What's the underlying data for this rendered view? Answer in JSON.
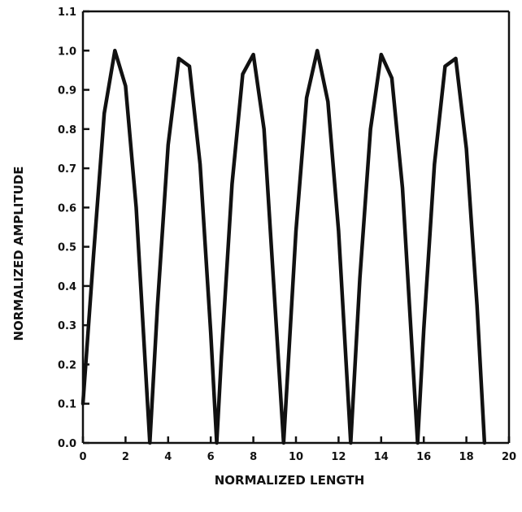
{
  "chart_data": {
    "type": "line",
    "title": "",
    "xlabel": "NORMALIZED   LENGTH",
    "ylabel": "NORMALIZED   AMPLITUDE",
    "xlim": [
      0,
      20
    ],
    "ylim": [
      0.0,
      1.1
    ],
    "grid": false,
    "x_ticks": [
      0,
      2,
      4,
      6,
      8,
      10,
      12,
      14,
      16,
      18,
      20
    ],
    "x_tick_labels": [
      "0",
      "2",
      "4",
      "6",
      "8",
      "10",
      "12",
      "14",
      "16",
      "18",
      "20"
    ],
    "y_ticks": [
      0.0,
      0.1,
      0.2,
      0.3,
      0.4,
      0.5,
      0.6,
      0.7,
      0.8,
      0.9,
      1.0,
      1.1
    ],
    "y_tick_labels": [
      "0.0",
      "0.1",
      "0.2",
      "0.3",
      "0.4",
      "0.5",
      "0.6",
      "0.7",
      "0.8",
      "0.9",
      "1.0",
      "1.1"
    ],
    "series": [
      {
        "x": [
          0.0,
          0.5,
          1.0,
          1.5,
          2.0,
          2.5,
          3.14,
          3.5,
          4.0,
          4.5,
          5.0,
          5.5,
          6.0,
          6.28,
          6.5,
          7.0,
          7.5,
          8.0,
          8.5,
          9.42,
          10.0,
          10.5,
          11.0,
          11.5,
          12.0,
          12.57,
          13.0,
          13.5,
          14.0,
          14.5,
          15.0,
          15.71,
          16.0,
          16.5,
          17.0,
          17.5,
          18.0,
          18.5,
          18.85
        ],
        "y": [
          0.1,
          0.48,
          0.84,
          1.0,
          0.91,
          0.6,
          0.0,
          0.35,
          0.76,
          0.98,
          0.96,
          0.71,
          0.28,
          0.0,
          0.22,
          0.66,
          0.94,
          0.99,
          0.8,
          0.0,
          0.54,
          0.88,
          1.0,
          0.87,
          0.54,
          0.0,
          0.42,
          0.8,
          0.99,
          0.93,
          0.65,
          0.0,
          0.29,
          0.71,
          0.96,
          0.98,
          0.75,
          0.35,
          0.0
        ]
      }
    ]
  }
}
